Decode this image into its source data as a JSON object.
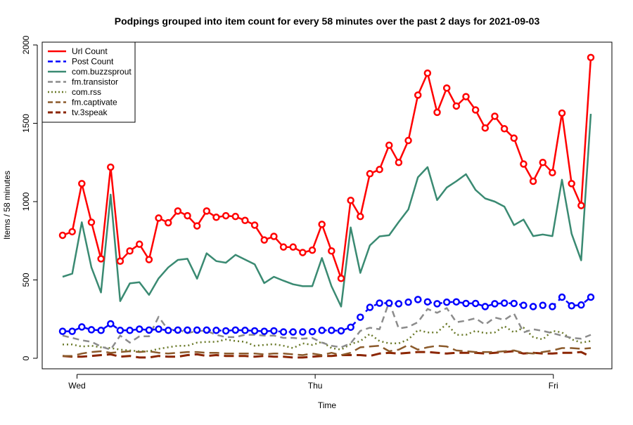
{
  "chart_data": {
    "type": "line",
    "title": "Podpings grouped into item count for every 58 minutes  over the past 2 days for 2021-09-03",
    "xlabel": "Time",
    "ylabel": "Items / 58 minutes",
    "ylim": [
      0,
      2000
    ],
    "yticks": [
      0,
      500,
      1000,
      1500,
      2000
    ],
    "xlim": [
      -1,
      50.3
    ],
    "xticks": [
      {
        "label": "Wed",
        "x": 1.5
      },
      {
        "label": "Thu",
        "x": 26.3
      },
      {
        "label": "Fri",
        "x": 51.1
      }
    ],
    "grid": false,
    "legend_position": "top-left",
    "series": [
      {
        "name": "Url Count",
        "color": "#ff0000",
        "style": "solid",
        "width": 2.5,
        "markers": true,
        "values": [
          785,
          808,
          1115,
          868,
          635,
          1220,
          620,
          685,
          728,
          630,
          895,
          865,
          940,
          910,
          845,
          940,
          900,
          910,
          905,
          880,
          850,
          755,
          778,
          710,
          710,
          675,
          690,
          855,
          685,
          510,
          1008,
          905,
          1178,
          1205,
          1360,
          1250,
          1390,
          1680,
          1820,
          1570,
          1725,
          1610,
          1670,
          1585,
          1470,
          1545,
          1465,
          1405,
          1240,
          1130,
          1250,
          1185,
          1565,
          1115,
          975,
          1920
        ]
      },
      {
        "name": "Post Count",
        "color": "#0000ff",
        "style": "dash",
        "width": 2.5,
        "markers": true,
        "values": [
          172,
          172,
          200,
          182,
          178,
          220,
          178,
          178,
          186,
          180,
          186,
          178,
          180,
          180,
          180,
          180,
          178,
          175,
          180,
          178,
          175,
          172,
          175,
          168,
          168,
          168,
          170,
          178,
          178,
          175,
          198,
          262,
          325,
          352,
          352,
          348,
          358,
          375,
          360,
          348,
          358,
          360,
          350,
          350,
          330,
          348,
          352,
          350,
          338,
          330,
          338,
          330,
          390,
          335,
          340,
          390
        ]
      },
      {
        "name": "com.buzzsprout",
        "color": "#3a8a72",
        "style": "solid",
        "width": 2.5,
        "markers": false,
        "values": [
          520,
          540,
          868,
          580,
          420,
          1045,
          365,
          478,
          485,
          405,
          510,
          580,
          628,
          635,
          508,
          670,
          620,
          610,
          660,
          630,
          600,
          480,
          520,
          495,
          472,
          460,
          460,
          640,
          460,
          330,
          835,
          545,
          720,
          778,
          785,
          870,
          950,
          1155,
          1220,
          1010,
          1090,
          1130,
          1175,
          1075,
          1020,
          1000,
          968,
          850,
          885,
          780,
          790,
          780,
          1140,
          795,
          625,
          1560
        ]
      },
      {
        "name": "fm.transistor",
        "color": "#8c8c8c",
        "style": "dash",
        "width": 2.5,
        "markers": false,
        "values": [
          145,
          130,
          115,
          105,
          75,
          55,
          145,
          100,
          140,
          140,
          265,
          180,
          185,
          160,
          175,
          175,
          150,
          135,
          135,
          150,
          150,
          145,
          145,
          130,
          130,
          125,
          130,
          100,
          80,
          70,
          95,
          175,
          195,
          185,
          360,
          190,
          200,
          230,
          315,
          290,
          320,
          230,
          240,
          255,
          215,
          260,
          245,
          285,
          165,
          185,
          175,
          160,
          145,
          130,
          125,
          150
        ]
      },
      {
        "name": "com.rss",
        "color": "#6b7a2a",
        "style": "dot",
        "width": 2.5,
        "markers": false,
        "values": [
          88,
          88,
          75,
          80,
          70,
          65,
          55,
          50,
          45,
          45,
          60,
          70,
          80,
          80,
          100,
          105,
          105,
          120,
          110,
          105,
          80,
          85,
          90,
          80,
          65,
          95,
          85,
          105,
          65,
          55,
          90,
          110,
          155,
          110,
          95,
          95,
          120,
          180,
          165,
          165,
          220,
          150,
          150,
          175,
          160,
          165,
          205,
          165,
          195,
          135,
          120,
          175,
          165,
          120,
          100,
          110
        ]
      },
      {
        "name": "fm.captivate",
        "color": "#8b5a2b",
        "style": "longdash",
        "width": 2.5,
        "markers": false,
        "values": [
          15,
          15,
          30,
          40,
          45,
          35,
          40,
          45,
          40,
          45,
          35,
          30,
          35,
          40,
          40,
          35,
          35,
          30,
          30,
          30,
          30,
          25,
          30,
          30,
          25,
          20,
          30,
          20,
          35,
          20,
          35,
          70,
          75,
          80,
          45,
          55,
          85,
          55,
          70,
          80,
          75,
          50,
          45,
          40,
          40,
          40,
          45,
          50,
          35,
          30,
          40,
          50,
          65,
          65,
          60,
          65
        ]
      },
      {
        "name": "tv.3speak",
        "color": "#8b2500",
        "style": "longdash",
        "width": 3,
        "markers": false,
        "values": [
          15,
          10,
          10,
          15,
          20,
          25,
          10,
          15,
          5,
          5,
          15,
          10,
          10,
          20,
          25,
          15,
          20,
          15,
          15,
          15,
          10,
          15,
          10,
          10,
          5,
          5,
          10,
          15,
          15,
          20,
          20,
          20,
          15,
          30,
          35,
          30,
          35,
          40,
          40,
          35,
          30,
          35,
          35,
          35,
          30,
          35,
          40,
          45,
          30,
          35,
          30,
          30,
          35,
          35,
          40,
          10
        ]
      }
    ]
  }
}
